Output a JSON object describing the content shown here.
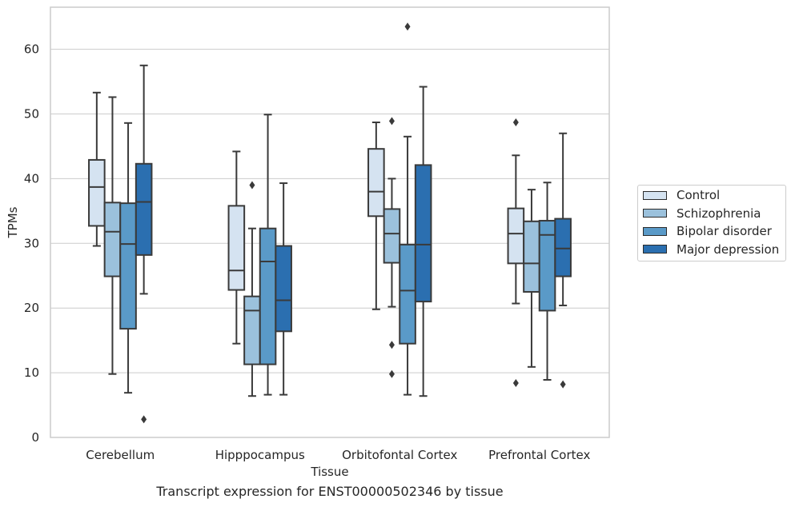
{
  "caption": "Transcript expression for ENST00000502346 by tissue",
  "chart_data": {
    "type": "box",
    "title": "",
    "xlabel": "Tissue",
    "ylabel": "TPMs",
    "ylim": [
      0,
      66.5
    ],
    "yticks": [
      0,
      10,
      20,
      30,
      40,
      50,
      60
    ],
    "grid": "horizontal",
    "legend_position": "right",
    "categories": [
      "Cerebellum",
      "Hipppocampus",
      "Orbitofontal Cortex",
      "Prefrontal Cortex"
    ],
    "series": [
      {
        "name": "Control",
        "color": "#d5e3f1",
        "boxes": [
          {
            "whislo": 29.6,
            "q1": 32.7,
            "med": 38.7,
            "q3": 42.9,
            "whishi": 53.3,
            "fliers": []
          },
          {
            "whislo": 14.5,
            "q1": 22.8,
            "med": 25.8,
            "q3": 35.8,
            "whishi": 44.2,
            "fliers": []
          },
          {
            "whislo": 19.8,
            "q1": 34.2,
            "med": 38.0,
            "q3": 44.6,
            "whishi": 48.7,
            "fliers": []
          },
          {
            "whislo": 20.7,
            "q1": 26.9,
            "med": 31.5,
            "q3": 35.4,
            "whishi": 43.6,
            "fliers": [
              48.7,
              8.4
            ]
          }
        ]
      },
      {
        "name": "Schizophrenia",
        "color": "#9bc1dc",
        "boxes": [
          {
            "whislo": 9.8,
            "q1": 24.9,
            "med": 31.8,
            "q3": 36.3,
            "whishi": 52.6,
            "fliers": []
          },
          {
            "whislo": 6.4,
            "q1": 11.3,
            "med": 19.6,
            "q3": 21.8,
            "whishi": 32.3,
            "fliers": [
              39.0
            ]
          },
          {
            "whislo": 20.2,
            "q1": 27.0,
            "med": 31.5,
            "q3": 35.3,
            "whishi": 40.0,
            "fliers": [
              48.9,
              14.3,
              9.8
            ]
          },
          {
            "whislo": 10.9,
            "q1": 22.5,
            "med": 26.9,
            "q3": 33.4,
            "whishi": 38.3,
            "fliers": []
          }
        ]
      },
      {
        "name": "Bipolar disorder",
        "color": "#5a9ac8",
        "boxes": [
          {
            "whislo": 6.9,
            "q1": 16.8,
            "med": 29.9,
            "q3": 36.2,
            "whishi": 48.6,
            "fliers": []
          },
          {
            "whislo": 6.6,
            "q1": 11.3,
            "med": 27.2,
            "q3": 32.3,
            "whishi": 49.9,
            "fliers": []
          },
          {
            "whislo": 6.6,
            "q1": 14.5,
            "med": 22.7,
            "q3": 29.8,
            "whishi": 46.5,
            "fliers": [
              63.5
            ]
          },
          {
            "whislo": 8.9,
            "q1": 19.6,
            "med": 31.3,
            "q3": 33.5,
            "whishi": 39.4,
            "fliers": []
          }
        ]
      },
      {
        "name": "Major depression",
        "color": "#2b6fb0",
        "boxes": [
          {
            "whislo": 22.2,
            "q1": 28.2,
            "med": 36.4,
            "q3": 42.3,
            "whishi": 57.5,
            "fliers": [
              2.8
            ]
          },
          {
            "whislo": 6.6,
            "q1": 16.4,
            "med": 21.2,
            "q3": 29.6,
            "whishi": 39.3,
            "fliers": []
          },
          {
            "whislo": 6.4,
            "q1": 21.0,
            "med": 29.8,
            "q3": 42.1,
            "whishi": 54.2,
            "fliers": []
          },
          {
            "whislo": 20.4,
            "q1": 24.9,
            "med": 29.2,
            "q3": 33.8,
            "whishi": 47.0,
            "fliers": [
              8.2
            ]
          }
        ]
      }
    ]
  }
}
